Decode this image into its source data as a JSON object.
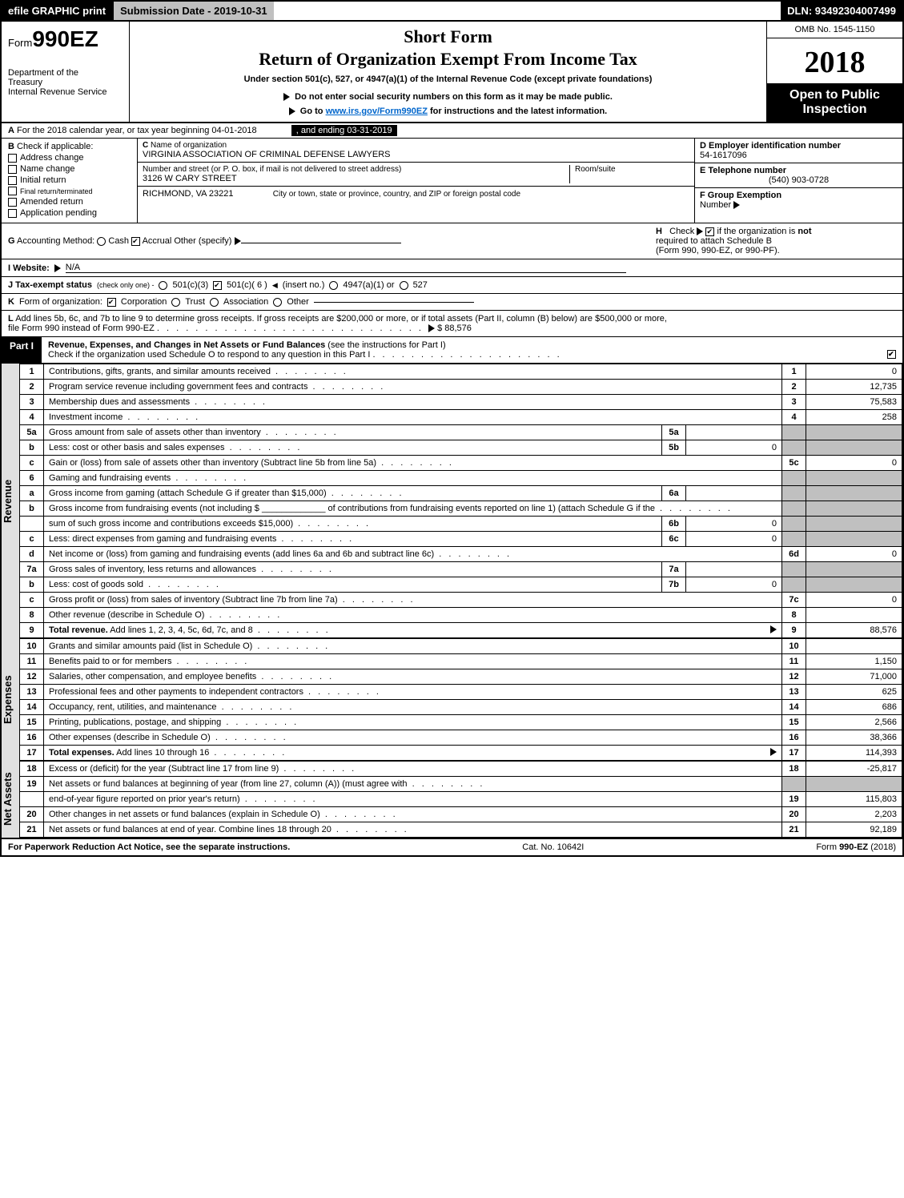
{
  "topbar": {
    "efile": "efile GRAPHIC print",
    "subdate_label": "Submission Date - 2019-10-31",
    "dln": "DLN: 93492304007499"
  },
  "header": {
    "form_prefix": "Form",
    "form_number": "990EZ",
    "short_form": "Short Form",
    "title": "Return of Organization Exempt From Income Tax",
    "under_section": "Under section 501(c), 527, or 4947(a)(1) of the Internal Revenue Code (except private foundations)",
    "dept1": "Department of the",
    "dept2": "Treasury",
    "irs": "Internal Revenue Service",
    "no_ssn": "Do not enter social security numbers on this form as it may be made public.",
    "goto": "Go to",
    "goto_link": "www.irs.gov/Form990EZ",
    "goto_suffix": "for instructions and the latest information.",
    "omb": "OMB No. 1545-1150",
    "year": "2018",
    "open1": "Open to Public",
    "open2": "Inspection"
  },
  "lineA": {
    "prefix": "A",
    "text": "For the 2018 calendar year, or tax year beginning 04-01-2018",
    "ending": ", and ending 03-31-2019"
  },
  "lineB": {
    "prefix": "B",
    "check_if": "Check if applicable:",
    "options": [
      "Address change",
      "Name change",
      "Initial return",
      "Final return/terminated",
      "Amended return",
      "Application pending"
    ]
  },
  "lineC": {
    "label": "C",
    "name_label": "Name of organization",
    "name": "VIRGINIA ASSOCIATION OF CRIMINAL DEFENSE LAWYERS",
    "addr_label": "Number and street (or P. O. box, if mail is not delivered to street address)",
    "addr": "3126 W CARY STREET",
    "room_label": "Room/suite",
    "city_label": "City or town, state or province, country, and ZIP or foreign postal code",
    "city": "RICHMOND, VA  23221"
  },
  "lineD": {
    "label": "D Employer identification number",
    "value": "54-1617096"
  },
  "lineE": {
    "label": "E Telephone number",
    "value": "(540) 903-0728"
  },
  "lineF": {
    "label": "F Group Exemption",
    "label2": "Number"
  },
  "lineG": {
    "prefix": "G",
    "text": "Accounting Method:",
    "cash": "Cash",
    "accrual": "Accrual",
    "other": "Other (specify)"
  },
  "lineH": {
    "prefix": "H",
    "text1": "Check",
    "text2": "if the organization is",
    "not": "not",
    "text3": "required to attach Schedule B",
    "text4": "(Form 990, 990-EZ, or 990-PF)."
  },
  "lineI": {
    "prefix": "I Website:",
    "value": "N/A"
  },
  "lineJ": {
    "prefix": "J Tax-exempt status",
    "note": "(check only one) -",
    "o1": "501(c)(3)",
    "o2": "501(c)( 6 )",
    "insert": "(insert no.)",
    "o3": "4947(a)(1) or",
    "o4": "527"
  },
  "lineK": {
    "prefix": "K",
    "text": "Form of organization:",
    "corp": "Corporation",
    "trust": "Trust",
    "assoc": "Association",
    "other": "Other"
  },
  "lineL": {
    "prefix": "L",
    "text": "Add lines 5b, 6c, and 7b to line 9 to determine gross receipts. If gross receipts are $200,000 or more, or if total assets (Part II, column (B) below) are $500,000 or more,",
    "text2": "file Form 990 instead of Form 990-EZ",
    "amount": "$ 88,576"
  },
  "part1": {
    "label": "Part I",
    "title": "Revenue, Expenses, and Changes in Net Assets or Fund Balances",
    "subtitle": "(see the instructions for Part I)",
    "check_text": "Check if the organization used Schedule O to respond to any question in this Part I"
  },
  "sections": {
    "revenue": "Revenue",
    "expenses": "Expenses",
    "netassets": "Net Assets"
  },
  "rows": [
    {
      "n": "1",
      "desc": "Contributions, gifts, grants, and similar amounts received",
      "rn": "1",
      "rv": "0"
    },
    {
      "n": "2",
      "desc": "Program service revenue including government fees and contracts",
      "rn": "2",
      "rv": "12,735"
    },
    {
      "n": "3",
      "desc": "Membership dues and assessments",
      "rn": "3",
      "rv": "75,583"
    },
    {
      "n": "4",
      "desc": "Investment income",
      "rn": "4",
      "rv": "258"
    },
    {
      "n": "5a",
      "desc": "Gross amount from sale of assets other than inventory",
      "mn": "5a",
      "mv": ""
    },
    {
      "n": "b",
      "desc": "Less: cost or other basis and sales expenses",
      "mn": "5b",
      "mv": "0"
    },
    {
      "n": "c",
      "desc": "Gain or (loss) from sale of assets other than inventory (Subtract line 5b from line 5a)",
      "rn": "5c",
      "rv": "0"
    },
    {
      "n": "6",
      "desc": "Gaming and fundraising events"
    },
    {
      "n": "a",
      "desc": "Gross income from gaming (attach Schedule G if greater than $15,000)",
      "mn": "6a",
      "mv": ""
    },
    {
      "n": "b",
      "desc": "Gross income from fundraising events (not including $ _____________ of contributions from fundraising events reported on line 1) (attach Schedule G if the"
    },
    {
      "n": "",
      "desc": "sum of such gross income and contributions exceeds $15,000)",
      "mn": "6b",
      "mv": "0"
    },
    {
      "n": "c",
      "desc": "Less: direct expenses from gaming and fundraising events",
      "mn": "6c",
      "mv": "0"
    },
    {
      "n": "d",
      "desc": "Net income or (loss) from gaming and fundraising events (add lines 6a and 6b and subtract line 6c)",
      "rn": "6d",
      "rv": "0"
    },
    {
      "n": "7a",
      "desc": "Gross sales of inventory, less returns and allowances",
      "mn": "7a",
      "mv": ""
    },
    {
      "n": "b",
      "desc": "Less: cost of goods sold",
      "mn": "7b",
      "mv": "0"
    },
    {
      "n": "c",
      "desc": "Gross profit or (loss) from sales of inventory (Subtract line 7b from line 7a)",
      "rn": "7c",
      "rv": "0"
    },
    {
      "n": "8",
      "desc": "Other revenue (describe in Schedule O)",
      "rn": "8",
      "rv": ""
    },
    {
      "n": "9",
      "desc": "Total revenue. Add lines 1, 2, 3, 4, 5c, 6d, 7c, and 8",
      "bold": true,
      "arrow": true,
      "rn": "9",
      "rv": "88,576"
    }
  ],
  "exp_rows": [
    {
      "n": "10",
      "desc": "Grants and similar amounts paid (list in Schedule O)",
      "rn": "10",
      "rv": ""
    },
    {
      "n": "11",
      "desc": "Benefits paid to or for members",
      "rn": "11",
      "rv": "1,150"
    },
    {
      "n": "12",
      "desc": "Salaries, other compensation, and employee benefits",
      "rn": "12",
      "rv": "71,000"
    },
    {
      "n": "13",
      "desc": "Professional fees and other payments to independent contractors",
      "rn": "13",
      "rv": "625"
    },
    {
      "n": "14",
      "desc": "Occupancy, rent, utilities, and maintenance",
      "rn": "14",
      "rv": "686"
    },
    {
      "n": "15",
      "desc": "Printing, publications, postage, and shipping",
      "rn": "15",
      "rv": "2,566"
    },
    {
      "n": "16",
      "desc": "Other expenses (describe in Schedule O)",
      "rn": "16",
      "rv": "38,366"
    },
    {
      "n": "17",
      "desc": "Total expenses. Add lines 10 through 16",
      "bold": true,
      "arrow": true,
      "rn": "17",
      "rv": "114,393"
    }
  ],
  "net_rows": [
    {
      "n": "18",
      "desc": "Excess or (deficit) for the year (Subtract line 17 from line 9)",
      "rn": "18",
      "rv": "-25,817"
    },
    {
      "n": "19",
      "desc": "Net assets or fund balances at beginning of year (from line 27, column (A)) (must agree with",
      "shaded_right": true
    },
    {
      "n": "",
      "desc": "end-of-year figure reported on prior year's return)",
      "rn": "19",
      "rv": "115,803"
    },
    {
      "n": "20",
      "desc": "Other changes in net assets or fund balances (explain in Schedule O)",
      "rn": "20",
      "rv": "2,203"
    },
    {
      "n": "21",
      "desc": "Net assets or fund balances at end of year. Combine lines 18 through 20",
      "rn": "21",
      "rv": "92,189"
    }
  ],
  "footer": {
    "left": "For Paperwork Reduction Act Notice, see the separate instructions.",
    "center": "Cat. No. 10642I",
    "right": "Form 990-EZ (2018)"
  },
  "colors": {
    "black": "#000000",
    "white": "#ffffff",
    "gray_header": "#c0c0c0",
    "gray_side": "#e0e0e0",
    "link": "#0066cc"
  }
}
